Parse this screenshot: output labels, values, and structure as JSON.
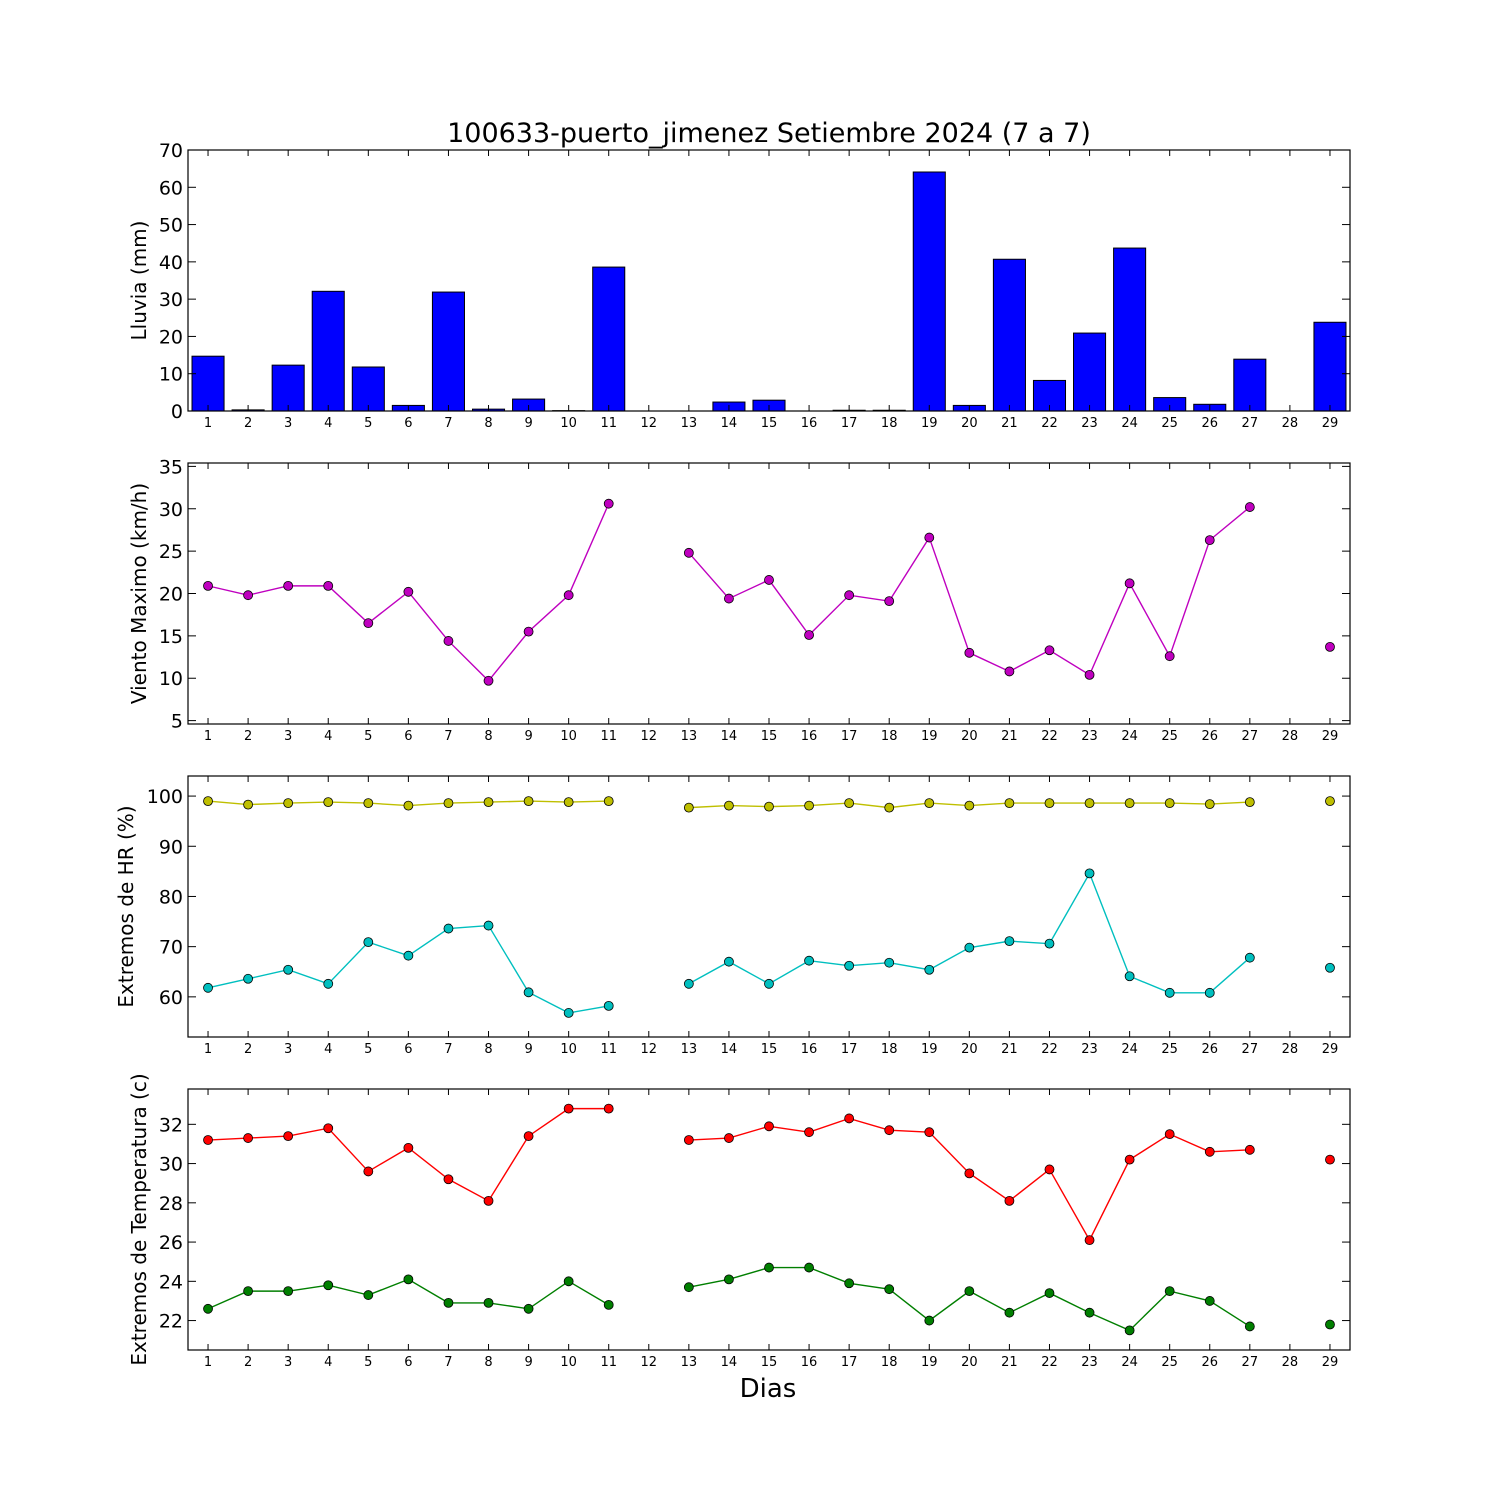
{
  "title": "100633-puerto_jimenez Setiembre 2024  (7 a 7)",
  "xlabel": "Dias",
  "chart_data": [
    {
      "type": "bar",
      "ylabel": "Lluvia (mm)",
      "ylim": [
        0,
        70
      ],
      "yticks": [
        0,
        10,
        20,
        30,
        40,
        50,
        60,
        70
      ],
      "xlim": [
        0.5,
        29.5
      ],
      "x": [
        1,
        2,
        3,
        4,
        5,
        6,
        7,
        8,
        9,
        10,
        11,
        12,
        13,
        14,
        15,
        16,
        17,
        18,
        19,
        20,
        21,
        22,
        23,
        24,
        25,
        26,
        27,
        28,
        29
      ],
      "values": [
        14.7,
        0.3,
        12.3,
        32.1,
        11.8,
        1.5,
        31.9,
        0.5,
        3.2,
        0.1,
        38.6,
        0,
        0,
        2.4,
        2.9,
        0,
        0.2,
        0.2,
        64.1,
        1.5,
        40.7,
        8.2,
        20.9,
        43.7,
        3.6,
        1.8,
        13.9,
        0,
        23.8
      ],
      "color": "#0000ff"
    },
    {
      "type": "line",
      "ylabel": "Viento Maximo (km/h)",
      "ylim": [
        4.6,
        35.4
      ],
      "yticks": [
        5,
        10,
        15,
        20,
        25,
        30,
        35
      ],
      "xlim": [
        0.5,
        29.5
      ],
      "series": [
        {
          "color": "#bf00bf",
          "x": [
            1,
            2,
            3,
            4,
            5,
            6,
            7,
            8,
            9,
            10,
            11,
            12,
            13,
            14,
            15,
            16,
            17,
            18,
            19,
            20,
            21,
            22,
            23,
            24,
            25,
            26,
            27,
            28,
            29
          ],
          "values": [
            20.9,
            19.8,
            20.9,
            20.9,
            16.5,
            20.2,
            14.4,
            9.7,
            15.5,
            19.8,
            30.6,
            null,
            24.8,
            19.4,
            21.6,
            15.1,
            19.8,
            19.1,
            26.6,
            13.0,
            10.8,
            13.3,
            10.4,
            21.2,
            12.6,
            26.3,
            30.2,
            null,
            13.7
          ]
        }
      ]
    },
    {
      "type": "line",
      "ylabel": "Extremos de HR (%)",
      "ylim": [
        52,
        104
      ],
      "yticks": [
        60,
        70,
        80,
        90,
        100
      ],
      "xlim": [
        0.5,
        29.5
      ],
      "series": [
        {
          "color": "#bfbf00",
          "x": [
            1,
            2,
            3,
            4,
            5,
            6,
            7,
            8,
            9,
            10,
            11,
            12,
            13,
            14,
            15,
            16,
            17,
            18,
            19,
            20,
            21,
            22,
            23,
            24,
            25,
            26,
            27,
            28,
            29
          ],
          "values": [
            99.0,
            98.3,
            98.6,
            98.8,
            98.6,
            98.1,
            98.6,
            98.8,
            99.0,
            98.8,
            99.0,
            null,
            97.7,
            98.1,
            97.9,
            98.1,
            98.6,
            97.7,
            98.6,
            98.1,
            98.6,
            98.6,
            98.6,
            98.6,
            98.6,
            98.4,
            98.8,
            null,
            99.0
          ]
        },
        {
          "color": "#00bfbf",
          "x": [
            1,
            2,
            3,
            4,
            5,
            6,
            7,
            8,
            9,
            10,
            11,
            12,
            13,
            14,
            15,
            16,
            17,
            18,
            19,
            20,
            21,
            22,
            23,
            24,
            25,
            26,
            27,
            28,
            29
          ],
          "values": [
            61.8,
            63.6,
            65.4,
            62.6,
            70.9,
            68.2,
            73.6,
            74.2,
            60.9,
            56.8,
            58.2,
            null,
            62.6,
            67.0,
            62.6,
            67.2,
            66.2,
            66.8,
            65.4,
            69.8,
            71.1,
            70.6,
            84.6,
            64.1,
            60.8,
            60.8,
            67.8,
            null,
            65.8
          ]
        }
      ]
    },
    {
      "type": "line",
      "ylabel": "Extremos de Temperatura (c)",
      "ylim": [
        20.5,
        33.8
      ],
      "yticks": [
        22,
        24,
        26,
        28,
        30,
        32
      ],
      "xlim": [
        0.5,
        29.5
      ],
      "series": [
        {
          "color": "#ff0000",
          "x": [
            1,
            2,
            3,
            4,
            5,
            6,
            7,
            8,
            9,
            10,
            11,
            12,
            13,
            14,
            15,
            16,
            17,
            18,
            19,
            20,
            21,
            22,
            23,
            24,
            25,
            26,
            27,
            28,
            29
          ],
          "values": [
            31.2,
            31.3,
            31.4,
            31.8,
            29.6,
            30.8,
            29.2,
            28.1,
            31.4,
            32.8,
            32.8,
            null,
            31.2,
            31.3,
            31.9,
            31.6,
            32.3,
            31.7,
            31.6,
            29.5,
            28.1,
            29.7,
            26.1,
            30.2,
            31.5,
            30.6,
            30.7,
            null,
            30.2
          ]
        },
        {
          "color": "#007f00",
          "x": [
            1,
            2,
            3,
            4,
            5,
            6,
            7,
            8,
            9,
            10,
            11,
            12,
            13,
            14,
            15,
            16,
            17,
            18,
            19,
            20,
            21,
            22,
            23,
            24,
            25,
            26,
            27,
            28,
            29
          ],
          "values": [
            22.6,
            23.5,
            23.5,
            23.8,
            23.3,
            24.1,
            22.9,
            22.9,
            22.6,
            24.0,
            22.8,
            null,
            23.7,
            24.1,
            24.7,
            24.7,
            23.9,
            23.6,
            22.0,
            23.5,
            22.4,
            23.4,
            22.4,
            21.5,
            23.5,
            23.0,
            21.7,
            null,
            21.8
          ]
        }
      ]
    }
  ]
}
